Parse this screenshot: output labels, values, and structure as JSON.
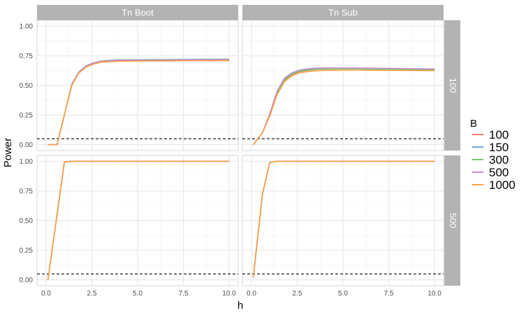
{
  "chart_data": {
    "type": "line",
    "facet_columns": [
      "Tn Boot",
      "Tn Sub"
    ],
    "facet_rows": [
      "100",
      "500"
    ],
    "xlabel": "h",
    "ylabel": "Power",
    "xlim": [
      0,
      10
    ],
    "ylim": [
      0,
      1
    ],
    "x_ticks": [
      0.0,
      2.5,
      5.0,
      7.5,
      10.0
    ],
    "x_tick_labels": [
      "0.0",
      "2.5",
      "5.0",
      "7.5",
      "10.0"
    ],
    "y_ticks": [
      0.0,
      0.25,
      0.5,
      0.75,
      1.0
    ],
    "y_tick_labels": [
      "0.00",
      "0.25",
      "0.50",
      "0.75",
      "1.00"
    ],
    "reference_line": {
      "y": 0.05,
      "style": "dashed"
    },
    "grid": true,
    "legend": {
      "title": "B",
      "position": "right",
      "labels": [
        "100",
        "150",
        "300",
        "500",
        "1000"
      ]
    },
    "colors": {
      "100": "#f8766d",
      "150": "#6fa3d6",
      "300": "#73c96a",
      "500": "#c58bd0",
      "1000": "#ffa040"
    },
    "x": [
      0.1,
      0.6,
      1.0,
      1.4,
      1.8,
      2.2,
      2.6,
      3.0,
      3.5,
      4.0,
      5.0,
      6.0,
      7.0,
      8.0,
      9.0,
      10.0
    ],
    "panels": [
      {
        "col": "Tn Boot",
        "row": "100",
        "series": [
          {
            "name": "100",
            "values": [
              0.0,
              0.0,
              0.25,
              0.5,
              0.61,
              0.66,
              0.685,
              0.7,
              0.705,
              0.71,
              0.71,
              0.712,
              0.713,
              0.714,
              0.715,
              0.716
            ]
          },
          {
            "name": "150",
            "values": [
              0.0,
              0.0,
              0.25,
              0.51,
              0.615,
              0.665,
              0.69,
              0.705,
              0.712,
              0.715,
              0.716,
              0.717,
              0.718,
              0.719,
              0.72,
              0.721
            ]
          },
          {
            "name": "300",
            "values": [
              0.0,
              0.0,
              0.25,
              0.5,
              0.612,
              0.662,
              0.688,
              0.703,
              0.71,
              0.713,
              0.714,
              0.715,
              0.716,
              0.716,
              0.717,
              0.718
            ]
          },
          {
            "name": "500",
            "values": [
              0.0,
              0.0,
              0.25,
              0.505,
              0.613,
              0.663,
              0.689,
              0.703,
              0.709,
              0.712,
              0.713,
              0.714,
              0.715,
              0.716,
              0.716,
              0.717
            ]
          },
          {
            "name": "1000",
            "values": [
              0.0,
              0.0,
              0.25,
              0.5,
              0.605,
              0.655,
              0.68,
              0.695,
              0.7,
              0.703,
              0.705,
              0.706,
              0.707,
              0.708,
              0.708,
              0.709
            ]
          }
        ]
      },
      {
        "col": "Tn Sub",
        "row": "100",
        "series": [
          {
            "name": "100",
            "values": [
              0.0,
              0.1,
              0.25,
              0.43,
              0.54,
              0.59,
              0.615,
              0.625,
              0.635,
              0.638,
              0.64,
              0.64,
              0.638,
              0.636,
              0.634,
              0.632
            ]
          },
          {
            "name": "150",
            "values": [
              0.0,
              0.1,
              0.25,
              0.44,
              0.55,
              0.6,
              0.622,
              0.632,
              0.64,
              0.642,
              0.643,
              0.642,
              0.64,
              0.639,
              0.638,
              0.637
            ]
          },
          {
            "name": "300",
            "values": [
              0.0,
              0.1,
              0.25,
              0.435,
              0.545,
              0.595,
              0.618,
              0.628,
              0.636,
              0.639,
              0.64,
              0.639,
              0.637,
              0.635,
              0.634,
              0.633
            ]
          },
          {
            "name": "500",
            "values": [
              0.0,
              0.1,
              0.26,
              0.45,
              0.56,
              0.605,
              0.628,
              0.638,
              0.645,
              0.647,
              0.647,
              0.646,
              0.644,
              0.642,
              0.64,
              0.638
            ]
          },
          {
            "name": "1000",
            "values": [
              0.0,
              0.1,
              0.24,
              0.42,
              0.53,
              0.58,
              0.605,
              0.615,
              0.622,
              0.626,
              0.628,
              0.628,
              0.627,
              0.626,
              0.625,
              0.624
            ]
          }
        ]
      },
      {
        "col": "Tn Boot",
        "row": "500",
        "series": [
          {
            "name": "100",
            "values": [
              0.0,
              0.55,
              0.995,
              1.0,
              1.0,
              1.0,
              1.0,
              1.0,
              1.0,
              1.0,
              1.0,
              1.0,
              1.0,
              1.0,
              1.0,
              1.0
            ]
          },
          {
            "name": "150",
            "values": [
              0.0,
              0.55,
              0.995,
              1.0,
              1.0,
              1.0,
              1.0,
              1.0,
              1.0,
              1.0,
              1.0,
              1.0,
              1.0,
              1.0,
              1.0,
              1.0
            ]
          },
          {
            "name": "300",
            "values": [
              0.0,
              0.55,
              0.995,
              1.0,
              1.0,
              1.0,
              1.0,
              1.0,
              1.0,
              1.0,
              1.0,
              1.0,
              1.0,
              1.0,
              1.0,
              1.0
            ]
          },
          {
            "name": "500",
            "values": [
              0.0,
              0.55,
              0.995,
              1.0,
              1.0,
              1.0,
              1.0,
              1.0,
              1.0,
              1.0,
              1.0,
              1.0,
              1.0,
              1.0,
              1.0,
              1.0
            ]
          },
          {
            "name": "1000",
            "values": [
              0.0,
              0.55,
              0.995,
              1.0,
              1.0,
              1.0,
              1.0,
              1.0,
              1.0,
              1.0,
              1.0,
              1.0,
              1.0,
              1.0,
              1.0,
              1.0
            ]
          }
        ]
      },
      {
        "col": "Tn Sub",
        "row": "500",
        "series": [
          {
            "name": "100",
            "values": [
              0.02,
              0.72,
              0.99,
              1.0,
              1.0,
              1.0,
              1.0,
              1.0,
              1.0,
              1.0,
              1.0,
              1.0,
              1.0,
              1.0,
              1.0,
              1.0
            ]
          },
          {
            "name": "150",
            "values": [
              0.02,
              0.72,
              0.99,
              1.0,
              1.0,
              1.0,
              1.0,
              1.0,
              1.0,
              1.0,
              1.0,
              1.0,
              1.0,
              1.0,
              1.0,
              1.0
            ]
          },
          {
            "name": "300",
            "values": [
              0.02,
              0.72,
              0.99,
              1.0,
              1.0,
              1.0,
              1.0,
              1.0,
              1.0,
              1.0,
              1.0,
              1.0,
              1.0,
              1.0,
              1.0,
              1.0
            ]
          },
          {
            "name": "500",
            "values": [
              0.02,
              0.72,
              0.99,
              1.0,
              1.0,
              1.0,
              1.0,
              1.0,
              1.0,
              1.0,
              1.0,
              1.0,
              1.0,
              1.0,
              1.0,
              1.0
            ]
          },
          {
            "name": "1000",
            "values": [
              0.02,
              0.72,
              0.99,
              1.0,
              1.0,
              1.0,
              1.0,
              1.0,
              1.0,
              1.0,
              1.0,
              1.0,
              1.0,
              1.0,
              1.0,
              1.0
            ]
          }
        ]
      }
    ]
  }
}
